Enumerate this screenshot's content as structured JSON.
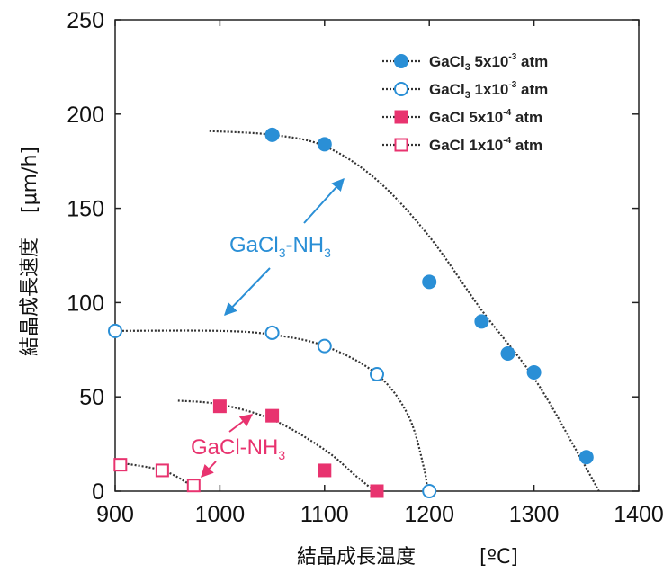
{
  "chart_data": {
    "type": "scatter",
    "title": "",
    "xlabel": "結晶成長温度",
    "xunit": "[ºC]",
    "ylabel": "結晶成長速度",
    "yunit": "[μm/h]",
    "xlim": [
      900,
      1400
    ],
    "ylim": [
      0,
      250
    ],
    "xticks": [
      "900",
      "1000",
      "1100",
      "1200",
      "1300",
      "1400"
    ],
    "yticks": [
      "0",
      "50",
      "100",
      "150",
      "200",
      "250"
    ],
    "grid": false,
    "legend_position": "top-right",
    "series": [
      {
        "name": "GaCl3 5x10-3 atm",
        "legend": {
          "base": "GaCl",
          "sub": "3",
          "mid": " 5x10",
          "sup": "-3",
          "end": " atm"
        },
        "marker": "circle-filled",
        "color": "#2a8fd6",
        "points": [
          [
            1050,
            189
          ],
          [
            1100,
            184
          ],
          [
            1200,
            111
          ],
          [
            1250,
            90
          ],
          [
            1275,
            73
          ],
          [
            1300,
            63
          ],
          [
            1350,
            18
          ]
        ],
        "fit": [
          [
            990,
            191
          ],
          [
            1050,
            189
          ],
          [
            1100,
            183
          ],
          [
            1150,
            165
          ],
          [
            1200,
            135
          ],
          [
            1250,
            96
          ],
          [
            1300,
            60
          ],
          [
            1340,
            22
          ],
          [
            1362,
            0
          ]
        ]
      },
      {
        "name": "GaCl3 1x10-3 atm",
        "legend": {
          "base": "GaCl",
          "sub": "3",
          "mid": " 1x10",
          "sup": "-3",
          "end": " atm"
        },
        "marker": "circle-open",
        "color": "#2a8fd6",
        "points": [
          [
            900,
            85
          ],
          [
            1050,
            84
          ],
          [
            1100,
            77
          ],
          [
            1150,
            62
          ],
          [
            1200,
            0
          ]
        ],
        "fit": [
          [
            900,
            85
          ],
          [
            1000,
            85
          ],
          [
            1050,
            83
          ],
          [
            1100,
            77
          ],
          [
            1150,
            62
          ],
          [
            1180,
            40
          ],
          [
            1195,
            12
          ],
          [
            1198,
            0
          ]
        ]
      },
      {
        "name": "GaCl 5x10-4 atm",
        "legend": {
          "base": "GaCl",
          "sub": "",
          "mid": "  5x10",
          "sup": "-4",
          "end": " atm"
        },
        "marker": "square-filled",
        "color": "#e8336f",
        "points": [
          [
            1000,
            45
          ],
          [
            1050,
            40
          ],
          [
            1100,
            11
          ],
          [
            1150,
            0
          ]
        ],
        "fit": [
          [
            960,
            48
          ],
          [
            1000,
            46
          ],
          [
            1050,
            38
          ],
          [
            1100,
            22
          ],
          [
            1130,
            8
          ],
          [
            1148,
            0
          ]
        ]
      },
      {
        "name": "GaCl 1x10-4 atm",
        "legend": {
          "base": "GaCl",
          "sub": "",
          "mid": "  1x10",
          "sup": "-4",
          "end": " atm"
        },
        "marker": "square-open",
        "color": "#e8336f",
        "points": [
          [
            905,
            14
          ],
          [
            945,
            11
          ],
          [
            975,
            3
          ]
        ],
        "fit": [
          [
            905,
            15
          ],
          [
            945,
            11
          ],
          [
            970,
            4
          ],
          [
            980,
            0
          ]
        ]
      }
    ],
    "annotations": [
      {
        "text_base": "GaCl",
        "text_sub": "3",
        "text_mid": "-NH",
        "text_sub2": "3",
        "color": "#2a8fd6"
      },
      {
        "text_base": "GaCl-NH",
        "text_sub": "3",
        "color": "#e8336f"
      }
    ]
  }
}
